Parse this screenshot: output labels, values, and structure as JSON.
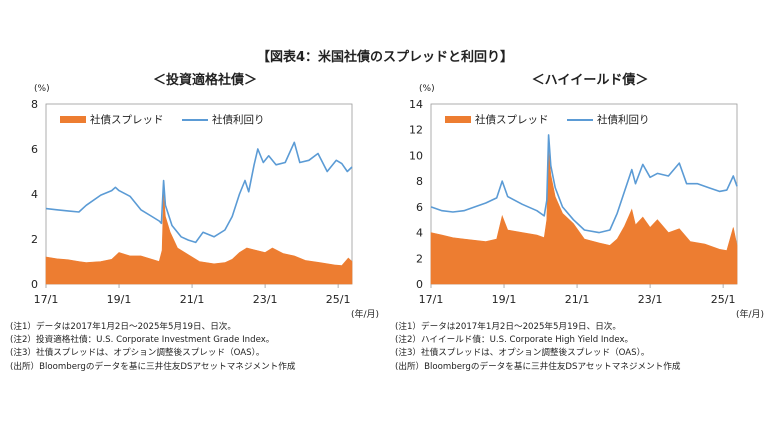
{
  "figure_title": "【図表4：米国社債のスプレッドと利回り】",
  "colors": {
    "spread": "#ED7D31",
    "yield": "#5B9BD5",
    "axis": "#999999",
    "text": "#222222"
  },
  "chart_data": [
    {
      "type": "area",
      "title": "＜投資適格社債＞",
      "ylabel": "(%)",
      "xlabel": "(年/月)",
      "ylim": [
        0,
        8
      ],
      "yticks": [
        "0",
        "2",
        "4",
        "6",
        "8"
      ],
      "xticks": [
        {
          "label": "17/1",
          "t": 2017.0
        },
        {
          "label": "19/1",
          "t": 2019.0
        },
        {
          "label": "21/1",
          "t": 2021.0
        },
        {
          "label": "23/1",
          "t": 2023.0
        },
        {
          "label": "25/1",
          "t": 2025.0
        }
      ],
      "xrange": [
        2017.0,
        2025.38
      ],
      "legend": [
        "社債スプレッド",
        "社債利回り"
      ],
      "series": [
        {
          "name": "社債スプレッド",
          "kind": "area",
          "points": [
            [
              2017.0,
              1.2
            ],
            [
              2017.3,
              1.12
            ],
            [
              2017.6,
              1.08
            ],
            [
              2017.9,
              1.0
            ],
            [
              2018.1,
              0.95
            ],
            [
              2018.5,
              1.0
            ],
            [
              2018.8,
              1.1
            ],
            [
              2019.0,
              1.4
            ],
            [
              2019.3,
              1.25
            ],
            [
              2019.6,
              1.25
            ],
            [
              2019.9,
              1.1
            ],
            [
              2020.1,
              1.0
            ],
            [
              2020.18,
              1.5
            ],
            [
              2020.22,
              4.0
            ],
            [
              2020.27,
              3.0
            ],
            [
              2020.4,
              2.3
            ],
            [
              2020.6,
              1.6
            ],
            [
              2020.9,
              1.3
            ],
            [
              2021.2,
              1.0
            ],
            [
              2021.6,
              0.9
            ],
            [
              2021.9,
              0.95
            ],
            [
              2022.1,
              1.1
            ],
            [
              2022.3,
              1.4
            ],
            [
              2022.5,
              1.6
            ],
            [
              2022.75,
              1.5
            ],
            [
              2023.0,
              1.4
            ],
            [
              2023.2,
              1.6
            ],
            [
              2023.5,
              1.35
            ],
            [
              2023.8,
              1.25
            ],
            [
              2024.1,
              1.05
            ],
            [
              2024.5,
              0.95
            ],
            [
              2024.9,
              0.85
            ],
            [
              2025.1,
              0.82
            ],
            [
              2025.28,
              1.15
            ],
            [
              2025.38,
              1.0
            ]
          ]
        },
        {
          "name": "社債利回り",
          "kind": "line",
          "points": [
            [
              2017.0,
              3.35
            ],
            [
              2017.3,
              3.3
            ],
            [
              2017.6,
              3.25
            ],
            [
              2017.9,
              3.2
            ],
            [
              2018.1,
              3.5
            ],
            [
              2018.5,
              3.95
            ],
            [
              2018.8,
              4.15
            ],
            [
              2018.9,
              4.3
            ],
            [
              2019.0,
              4.15
            ],
            [
              2019.3,
              3.9
            ],
            [
              2019.6,
              3.3
            ],
            [
              2019.9,
              3.0
            ],
            [
              2020.1,
              2.8
            ],
            [
              2020.16,
              2.7
            ],
            [
              2020.22,
              4.6
            ],
            [
              2020.27,
              3.5
            ],
            [
              2020.45,
              2.6
            ],
            [
              2020.7,
              2.1
            ],
            [
              2020.9,
              1.95
            ],
            [
              2021.1,
              1.85
            ],
            [
              2021.3,
              2.3
            ],
            [
              2021.6,
              2.1
            ],
            [
              2021.9,
              2.4
            ],
            [
              2022.1,
              3.0
            ],
            [
              2022.3,
              4.0
            ],
            [
              2022.45,
              4.6
            ],
            [
              2022.55,
              4.1
            ],
            [
              2022.7,
              5.3
            ],
            [
              2022.8,
              6.0
            ],
            [
              2022.95,
              5.4
            ],
            [
              2023.1,
              5.7
            ],
            [
              2023.3,
              5.3
            ],
            [
              2023.55,
              5.4
            ],
            [
              2023.8,
              6.3
            ],
            [
              2023.95,
              5.4
            ],
            [
              2024.2,
              5.5
            ],
            [
              2024.45,
              5.8
            ],
            [
              2024.7,
              5.0
            ],
            [
              2024.95,
              5.5
            ],
            [
              2025.1,
              5.35
            ],
            [
              2025.25,
              5.0
            ],
            [
              2025.38,
              5.2
            ]
          ]
        }
      ]
    },
    {
      "type": "area",
      "title": "＜ハイイールド債＞",
      "ylabel": "(%)",
      "xlabel": "(年/月)",
      "ylim": [
        0,
        14
      ],
      "yticks": [
        "0",
        "2",
        "4",
        "6",
        "8",
        "10",
        "12",
        "14"
      ],
      "xticks": [
        {
          "label": "17/1",
          "t": 2017.0
        },
        {
          "label": "19/1",
          "t": 2019.0
        },
        {
          "label": "21/1",
          "t": 2021.0
        },
        {
          "label": "23/1",
          "t": 2023.0
        },
        {
          "label": "25/1",
          "t": 2025.0
        }
      ],
      "xrange": [
        2017.0,
        2025.38
      ],
      "legend": [
        "社債スプレッド",
        "社債利回り"
      ],
      "series": [
        {
          "name": "社債スプレッド",
          "kind": "area",
          "points": [
            [
              2017.0,
              4.0
            ],
            [
              2017.3,
              3.8
            ],
            [
              2017.6,
              3.6
            ],
            [
              2017.9,
              3.5
            ],
            [
              2018.2,
              3.4
            ],
            [
              2018.5,
              3.3
            ],
            [
              2018.8,
              3.5
            ],
            [
              2018.95,
              5.3
            ],
            [
              2019.1,
              4.2
            ],
            [
              2019.5,
              4.0
            ],
            [
              2019.9,
              3.8
            ],
            [
              2020.1,
              3.6
            ],
            [
              2020.17,
              5.0
            ],
            [
              2020.22,
              10.5
            ],
            [
              2020.28,
              8.5
            ],
            [
              2020.4,
              6.8
            ],
            [
              2020.6,
              5.5
            ],
            [
              2020.9,
              4.7
            ],
            [
              2021.2,
              3.5
            ],
            [
              2021.6,
              3.2
            ],
            [
              2021.9,
              3.0
            ],
            [
              2022.1,
              3.5
            ],
            [
              2022.3,
              4.5
            ],
            [
              2022.5,
              5.8
            ],
            [
              2022.6,
              4.6
            ],
            [
              2022.8,
              5.2
            ],
            [
              2023.0,
              4.4
            ],
            [
              2023.2,
              5.0
            ],
            [
              2023.5,
              4.0
            ],
            [
              2023.8,
              4.3
            ],
            [
              2024.1,
              3.3
            ],
            [
              2024.5,
              3.1
            ],
            [
              2024.9,
              2.7
            ],
            [
              2025.1,
              2.6
            ],
            [
              2025.28,
              4.4
            ],
            [
              2025.38,
              3.0
            ]
          ]
        },
        {
          "name": "社債利回り",
          "kind": "line",
          "points": [
            [
              2017.0,
              6.0
            ],
            [
              2017.3,
              5.7
            ],
            [
              2017.6,
              5.6
            ],
            [
              2017.9,
              5.7
            ],
            [
              2018.2,
              6.0
            ],
            [
              2018.5,
              6.3
            ],
            [
              2018.8,
              6.7
            ],
            [
              2018.95,
              8.0
            ],
            [
              2019.1,
              6.8
            ],
            [
              2019.5,
              6.2
            ],
            [
              2019.9,
              5.7
            ],
            [
              2020.1,
              5.3
            ],
            [
              2020.17,
              6.5
            ],
            [
              2020.22,
              11.6
            ],
            [
              2020.28,
              9.2
            ],
            [
              2020.4,
              7.5
            ],
            [
              2020.6,
              6.0
            ],
            [
              2020.9,
              5.0
            ],
            [
              2021.2,
              4.2
            ],
            [
              2021.6,
              4.0
            ],
            [
              2021.9,
              4.2
            ],
            [
              2022.1,
              5.5
            ],
            [
              2022.3,
              7.2
            ],
            [
              2022.5,
              8.9
            ],
            [
              2022.6,
              7.8
            ],
            [
              2022.8,
              9.3
            ],
            [
              2023.0,
              8.3
            ],
            [
              2023.2,
              8.6
            ],
            [
              2023.5,
              8.4
            ],
            [
              2023.8,
              9.4
            ],
            [
              2024.0,
              7.8
            ],
            [
              2024.3,
              7.8
            ],
            [
              2024.6,
              7.5
            ],
            [
              2024.9,
              7.2
            ],
            [
              2025.1,
              7.3
            ],
            [
              2025.28,
              8.4
            ],
            [
              2025.38,
              7.6
            ]
          ]
        }
      ]
    }
  ],
  "notes": [
    [
      "(注1）データは2017年1月2日～2025年5月19日、日次。",
      "(注2）投資適格社債：U.S. Corporate Investment Grade Index。",
      "(注3）社債スプレッドは、オプション調整後スプレッド（OAS）。",
      "(出所）Bloombergのデータを基に三井住友DSアセットマネジメント作成"
    ],
    [
      "(注1）データは2017年1月2日～2025年5月19日、日次。",
      "(注2）ハイイールド債：U.S. Corporate High Yield Index。",
      "(注3）社債スプレッドは、オプション調整後スプレッド（OAS）。",
      "(出所）Bloombergのデータを基に三井住友DSアセットマネジメント作成"
    ]
  ]
}
